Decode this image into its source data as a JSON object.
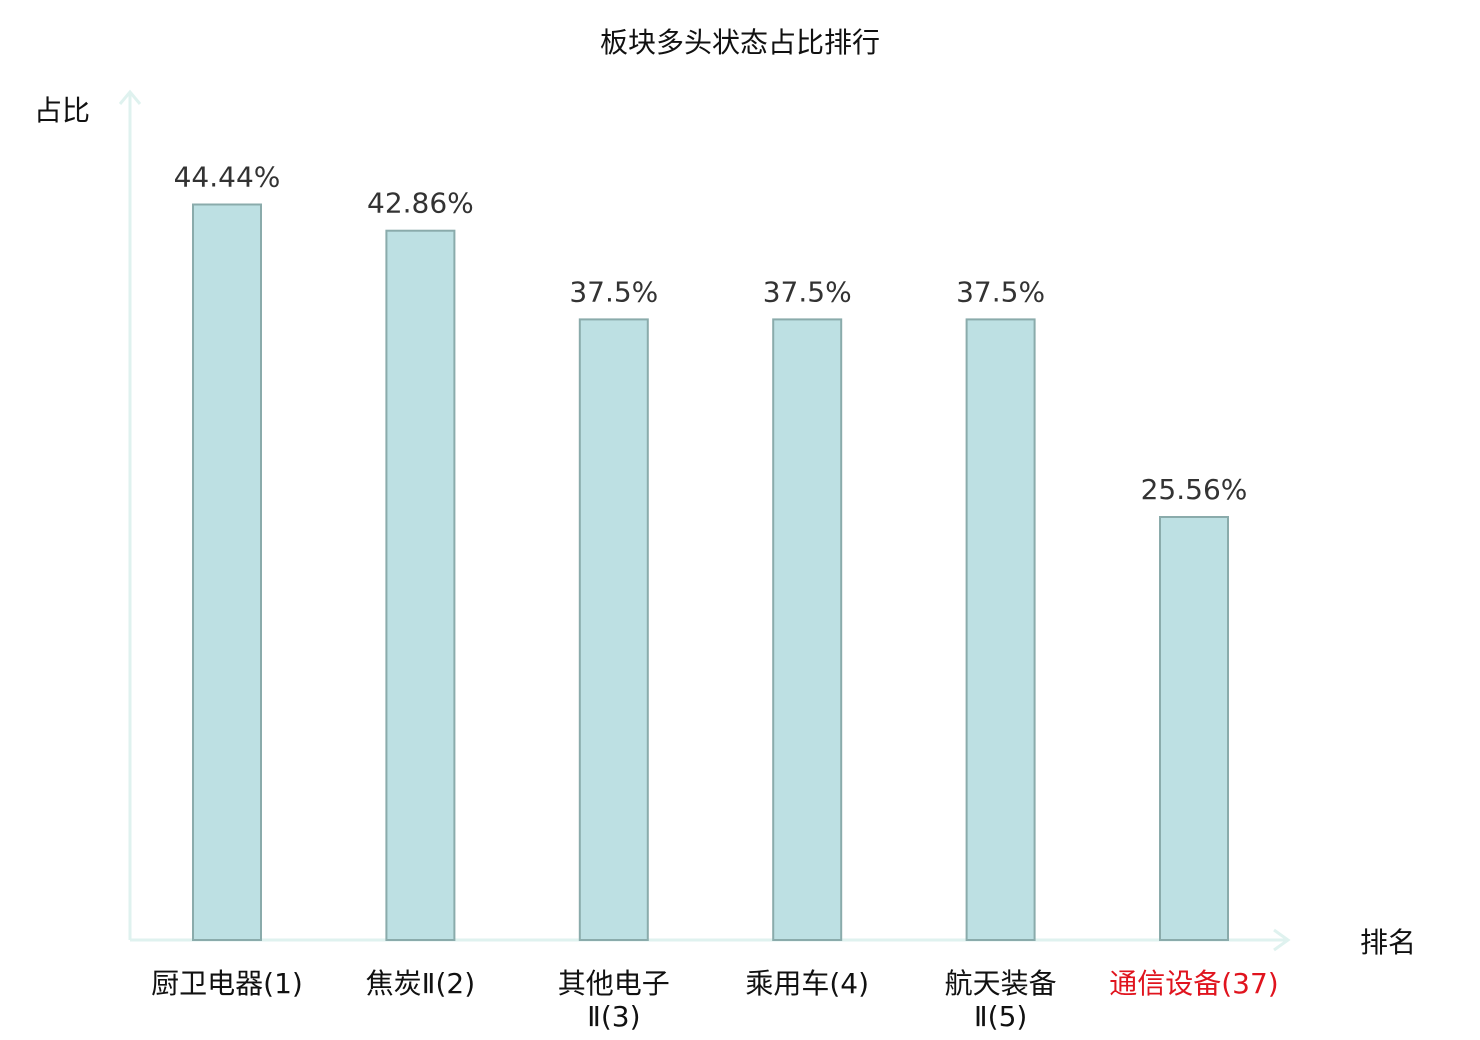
{
  "chart_data": {
    "type": "bar",
    "title": "板块多头状态占比排行",
    "xlabel": "排名",
    "ylabel": "占比",
    "categories": [
      [
        "厨卫电器(1)"
      ],
      [
        "焦炭Ⅱ(2)"
      ],
      [
        "其他电子",
        "Ⅱ(3)"
      ],
      [
        "乘用车(4)"
      ],
      [
        "航天装备",
        "Ⅱ(5)"
      ],
      [
        "通信设备(37)"
      ]
    ],
    "values": [
      44.44,
      42.86,
      37.5,
      37.5,
      37.5,
      25.56
    ],
    "value_labels": [
      "44.44%",
      "42.86%",
      "37.5%",
      "37.5%",
      "37.5%",
      "25.56%"
    ],
    "highlight_index": 5,
    "ylim": [
      0,
      50
    ],
    "grid": false,
    "legend": "none"
  },
  "colors": {
    "bar_fill": "#bde0e3",
    "bar_stroke": "#8aabab",
    "axis": "#dff2ef",
    "text": "#111111",
    "value_text": "#333333",
    "highlight": "#e0141e"
  }
}
